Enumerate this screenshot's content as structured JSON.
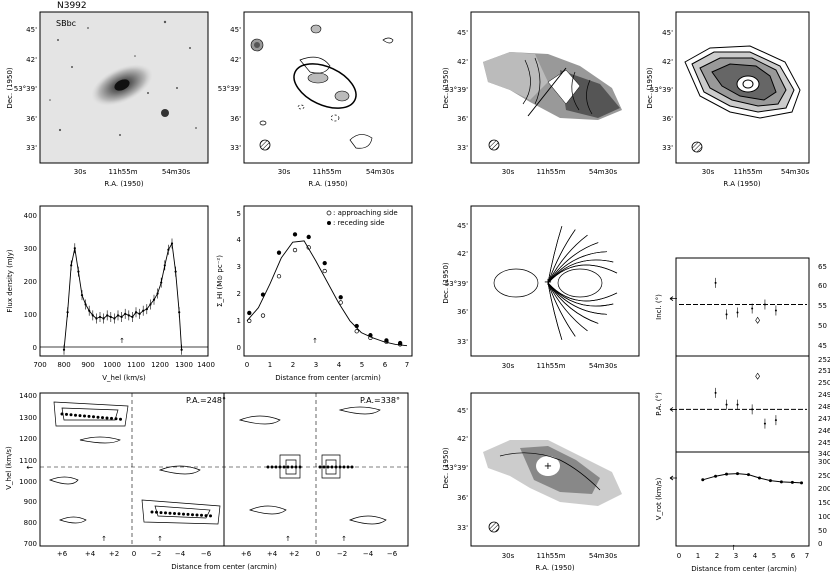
{
  "figure_title": "N3992",
  "morph_type": "SBbc",
  "sky": {
    "dec_ticks": [
      "45'",
      "42'",
      "53°39'",
      "36'",
      "33'"
    ],
    "ra_ticks": [
      "30s",
      "11h55m",
      "54m30s"
    ],
    "dec_label": "Dec. (1950)",
    "ra_label": "R.A. (1950)",
    "ra_label_alt": "R.A (1950)"
  },
  "profile": {
    "ylabel": "Flux density (mJy)",
    "xlabel": "V_hel (km/s)",
    "xticks": [
      "700",
      "800",
      "900",
      "1000",
      "1100",
      "1200",
      "1300",
      "1400"
    ],
    "yticks": [
      "0",
      "100",
      "200",
      "300",
      "400"
    ]
  },
  "radial": {
    "ylabel": "Σ_HI (M⊙ pc⁻²)",
    "xlabel": "Distance from center (arcmin)",
    "xticks": [
      "0",
      "1",
      "2",
      "3",
      "4",
      "5",
      "6",
      "7"
    ],
    "yticks": [
      "0",
      "1",
      "2",
      "3",
      "4",
      "5"
    ],
    "legend": [
      ": approaching side",
      ": receding side"
    ]
  },
  "pv": {
    "ylabel": "V_hel (km/s)",
    "xlabel": "Distance from center (arcmin)",
    "pa_left": "P.A.=248°",
    "pa_right": "P.A.=338°",
    "xticks_left": [
      "+6",
      "+4",
      "+2",
      "0",
      "−2",
      "−4",
      "−6"
    ],
    "xticks_right": [
      "+6",
      "+4",
      "+2",
      "0",
      "−2",
      "−4",
      "−6"
    ],
    "yticks": [
      "700",
      "800",
      "900",
      "1000",
      "1100",
      "1200",
      "1300",
      "1400"
    ]
  },
  "fit": {
    "incl_label": "Incl. (°)",
    "pa_label": "P.A. (°)",
    "vrot_label": "V_rot (km/s)",
    "xlabel": "Distance from center (arcmin)",
    "xticks": [
      "0",
      "1",
      "2",
      "3",
      "4",
      "5",
      "6",
      "7"
    ],
    "incl_ticks": [
      "45",
      "50",
      "55",
      "60",
      "65"
    ],
    "pa_ticks": [
      "245",
      "246",
      "247",
      "248",
      "249",
      "250",
      "251",
      "252"
    ],
    "vrot_ticks": [
      "0",
      "50",
      "100",
      "150",
      "200",
      "250",
      "300",
      "340"
    ]
  },
  "chart_data": [
    {
      "type": "line",
      "id": "global-profile",
      "xlabel": "V_hel (km/s)",
      "ylabel": "Flux density (mJy)",
      "xlim": [
        700,
        1400
      ],
      "ylim": [
        -20,
        460
      ],
      "x": [
        800,
        815,
        830,
        845,
        860,
        875,
        890,
        905,
        920,
        935,
        950,
        965,
        980,
        995,
        1010,
        1025,
        1040,
        1055,
        1070,
        1085,
        1100,
        1115,
        1130,
        1145,
        1160,
        1175,
        1190,
        1205,
        1220,
        1235,
        1250,
        1265,
        1280,
        1290
      ],
      "y": [
        0,
        120,
        270,
        325,
        250,
        175,
        145,
        125,
        110,
        100,
        105,
        100,
        110,
        105,
        100,
        110,
        105,
        115,
        110,
        105,
        120,
        115,
        125,
        130,
        145,
        160,
        180,
        215,
        270,
        320,
        340,
        250,
        120,
        0
      ]
    },
    {
      "type": "scatter",
      "id": "radial-density",
      "xlabel": "Distance from center (arcmin)",
      "ylabel": "Σ_HI (M⊙ pc⁻²)",
      "xlim": [
        0,
        7
      ],
      "ylim": [
        -0.3,
        5.3
      ],
      "series": [
        {
          "name": "approaching side",
          "x": [
            0.1,
            0.7,
            1.4,
            2.1,
            2.7,
            3.4,
            4.1,
            4.8,
            5.4,
            6.1,
            6.7
          ],
          "y": [
            1.0,
            1.2,
            2.7,
            3.7,
            3.8,
            2.9,
            1.7,
            0.6,
            0.35,
            0.2,
            0.1
          ]
        },
        {
          "name": "receding side",
          "x": [
            0.1,
            0.7,
            1.4,
            2.1,
            2.7,
            3.4,
            4.1,
            4.8,
            5.4,
            6.1,
            6.7
          ],
          "y": [
            1.3,
            2.0,
            3.6,
            4.3,
            4.2,
            3.2,
            1.9,
            0.8,
            0.45,
            0.25,
            0.15
          ]
        },
        {
          "name": "model",
          "x": [
            0,
            0.5,
            1,
            1.5,
            2,
            2.5,
            3,
            3.5,
            4,
            4.5,
            5,
            5.5,
            6,
            6.5,
            7
          ],
          "y": [
            1.0,
            1.5,
            2.4,
            3.4,
            4.0,
            4.05,
            3.3,
            2.5,
            1.7,
            1.0,
            0.55,
            0.35,
            0.2,
            0.1,
            0.05
          ]
        }
      ]
    },
    {
      "type": "scatter",
      "id": "inclination",
      "ylabel": "Incl. (°)",
      "xlim": [
        0,
        7
      ],
      "ylim": [
        45,
        65
      ],
      "x": [
        2.0,
        2.6,
        3.2,
        4.0,
        4.7,
        5.3
      ],
      "y": [
        61.5,
        53.5,
        54.0,
        55.0,
        56.0,
        54.5
      ],
      "outlier": {
        "x": 4.3,
        "y": 52.0
      },
      "fixed": 56.0,
      "arrow_at": 57.5
    },
    {
      "type": "scatter",
      "id": "position-angle",
      "ylabel": "P.A. (°)",
      "xlim": [
        0,
        7
      ],
      "ylim": [
        244,
        252
      ],
      "x": [
        2.0,
        2.6,
        3.2,
        4.0,
        4.7,
        5.3
      ],
      "y": [
        249.4,
        248.4,
        248.4,
        248.0,
        246.8,
        247.1
      ],
      "outlier": {
        "x": 4.3,
        "y": 250.8
      },
      "fixed": 248.0,
      "arrow_at": 248.0
    },
    {
      "type": "line",
      "id": "rotation-curve",
      "xlabel": "Distance from center (arcmin)",
      "ylabel": "V_rot (km/s)",
      "xlim": [
        0,
        7
      ],
      "ylim": [
        0,
        340
      ],
      "x": [
        1.3,
        2.0,
        2.6,
        3.2,
        3.8,
        4.4,
        5.0,
        5.6,
        6.2,
        6.7
      ],
      "y": [
        248,
        262,
        270,
        272,
        268,
        255,
        245,
        240,
        238,
        236
      ],
      "arrow_at": 255,
      "marker_x": 3.0
    }
  ]
}
